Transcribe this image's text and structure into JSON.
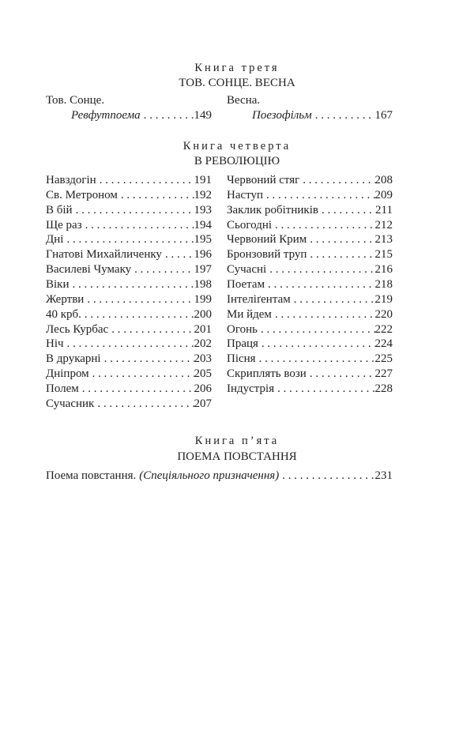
{
  "book3": {
    "label": "Книга третя",
    "title": "ТОВ. СОНЦЕ. ВЕСНА",
    "entries": [
      {
        "title": "Тов. Сонце.",
        "subtitle": "Ревфутпоема",
        "page": "149"
      },
      {
        "title": "Весна.",
        "subtitle": "Поезофільм",
        "page": "167"
      }
    ]
  },
  "book4": {
    "label": "Книга четверта",
    "title": "В РЕВОЛЮЦІЮ",
    "left": [
      {
        "title": "Навздогін",
        "page": "191"
      },
      {
        "title": "Св. Метроном",
        "page": "192"
      },
      {
        "title": "В бій",
        "page": "193"
      },
      {
        "title": "Ще раз",
        "page": "194"
      },
      {
        "title": "Дні",
        "page": "195"
      },
      {
        "title": "Гнатові Михайличенку",
        "page": "196"
      },
      {
        "title": "Василеві Чумаку",
        "page": "197"
      },
      {
        "title": "Віки",
        "page": "198"
      },
      {
        "title": "Жертви",
        "page": "199"
      },
      {
        "title": "40 крб.",
        "page": "200"
      },
      {
        "title": "Лесь Курбас",
        "page": "201"
      },
      {
        "title": "Ніч",
        "page": "202"
      },
      {
        "title": "В друкарні",
        "page": "203"
      },
      {
        "title": "Дніпром",
        "page": "205"
      },
      {
        "title": "Полем",
        "page": "206"
      },
      {
        "title": "Сучасник",
        "page": "207"
      }
    ],
    "right": [
      {
        "title": "Червоний стяг",
        "page": "208"
      },
      {
        "title": "Наступ",
        "page": "209"
      },
      {
        "title": "Заклик робітників",
        "page": "211"
      },
      {
        "title": "Сьогодні",
        "page": "212"
      },
      {
        "title": "Червоний Крим",
        "page": "213"
      },
      {
        "title": "Бронзовий труп",
        "page": "215"
      },
      {
        "title": "Сучасні",
        "page": "216"
      },
      {
        "title": "Поетам",
        "page": "218"
      },
      {
        "title": "Інтеліґентам",
        "page": "219"
      },
      {
        "title": "Ми йдем",
        "page": "220"
      },
      {
        "title": "Огонь",
        "page": "222"
      },
      {
        "title": "Праця",
        "page": "224"
      },
      {
        "title": "Пісня",
        "page": "225"
      },
      {
        "title": "Скриплять вози",
        "page": "227"
      },
      {
        "title": "Індустрія",
        "page": "228"
      }
    ]
  },
  "book5": {
    "label": "Книга п’ята",
    "title": "ПОЕМА ПОВСТАННЯ",
    "entry": {
      "title": "Поема повстання.",
      "subtitle": "(Спеціяльного призначення)",
      "page": "231"
    }
  }
}
